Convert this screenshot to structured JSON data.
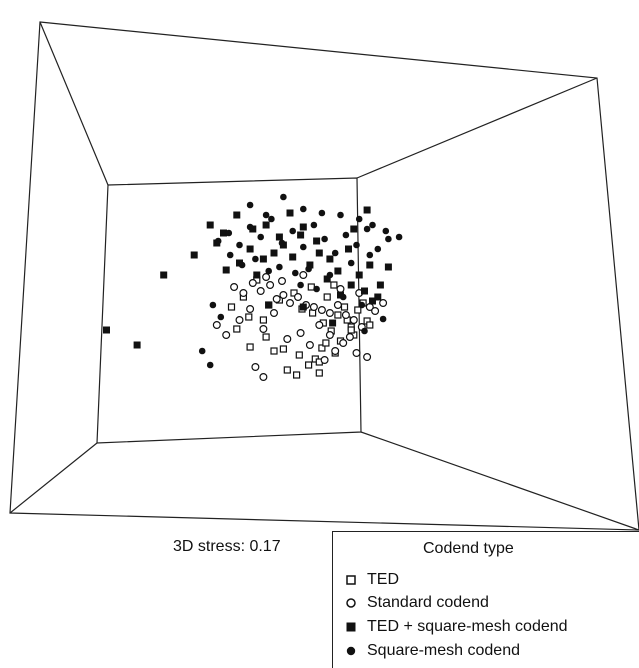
{
  "chart_data": {
    "type": "scatter",
    "title": "",
    "projection": "3D nMDS ordination (perspective box)",
    "annotation": "3D stress: 0.17",
    "legend": {
      "title": "Codend type",
      "placement": "bottom-right",
      "entries": [
        {
          "label": "TED",
          "marker": "open-square"
        },
        {
          "label": "Standard codend",
          "marker": "open-circle"
        },
        {
          "label": "TED + square-mesh codend",
          "marker": "filled-square"
        },
        {
          "label": "Square-mesh codend",
          "marker": "filled-circle"
        }
      ]
    },
    "series": [
      {
        "name": "TED",
        "marker": "open-square",
        "x": [
          -0.35,
          -0.44,
          -0.31,
          -0.16,
          -0.05,
          0.07,
          0.14,
          0.19,
          0.22,
          0.24,
          0.27,
          0.34,
          0.38,
          0.46,
          0.51,
          0.58,
          -0.4,
          -0.3,
          -0.18,
          -0.08,
          0.03,
          0.09,
          0.17,
          0.25,
          0.31,
          0.36,
          0.43,
          0.48,
          0.55,
          0.6,
          -0.02,
          0.05,
          -0.12,
          0.28,
          0.33,
          0.41,
          0.46,
          0.22,
          0.16,
          -0.25,
          -0.2
        ],
        "y": [
          0.18,
          0.08,
          -0.02,
          0.1,
          -0.34,
          -0.4,
          -0.5,
          -0.44,
          -0.47,
          -0.33,
          -0.28,
          -0.38,
          -0.26,
          -0.12,
          0.05,
          -0.06,
          -0.14,
          -0.32,
          -0.22,
          0.15,
          0.22,
          0.06,
          0.02,
          -0.08,
          -0.16,
          0.0,
          -0.05,
          -0.2,
          0.12,
          -0.1,
          -0.55,
          -0.6,
          -0.36,
          0.18,
          0.3,
          0.08,
          -0.15,
          -0.58,
          0.28,
          0.35,
          -0.05
        ]
      },
      {
        "name": "Standard codend",
        "marker": "open-circle",
        "x": [
          -0.42,
          -0.35,
          -0.28,
          -0.22,
          -0.15,
          -0.1,
          -0.05,
          0.0,
          0.06,
          0.12,
          0.18,
          0.24,
          0.3,
          0.36,
          0.42,
          0.48,
          0.54,
          0.6,
          -0.55,
          -0.48,
          -0.38,
          -0.3,
          -0.2,
          -0.12,
          -0.02,
          0.08,
          0.15,
          0.22,
          0.3,
          0.4,
          0.5,
          0.58,
          0.64,
          0.7,
          -0.26,
          0.26,
          0.34,
          -0.18,
          -0.06,
          0.1,
          0.45,
          0.52,
          0.38,
          -0.2
        ],
        "y": [
          0.28,
          0.22,
          0.32,
          0.24,
          0.3,
          0.16,
          0.2,
          0.12,
          0.18,
          0.1,
          0.08,
          0.05,
          0.02,
          0.1,
          0.0,
          -0.05,
          -0.12,
          0.08,
          -0.1,
          -0.2,
          -0.05,
          0.06,
          -0.14,
          0.02,
          -0.24,
          -0.18,
          -0.3,
          -0.1,
          -0.2,
          -0.28,
          -0.38,
          -0.42,
          0.04,
          0.12,
          -0.52,
          -0.45,
          -0.36,
          0.38,
          0.34,
          0.4,
          -0.22,
          0.22,
          0.26,
          -0.62
        ]
      },
      {
        "name": "TED + square-mesh codend",
        "marker": "filled-square",
        "x": [
          -1.38,
          -1.15,
          -0.95,
          -0.72,
          -0.55,
          -0.48,
          -0.38,
          -0.3,
          -0.2,
          -0.12,
          -0.05,
          0.02,
          0.08,
          0.15,
          0.22,
          0.3,
          0.36,
          0.44,
          0.52,
          0.6,
          0.68,
          0.74,
          -0.6,
          -0.5,
          -0.4,
          -0.28,
          -0.18,
          -0.08,
          0.0,
          0.1,
          0.2,
          0.28,
          0.38,
          0.46,
          0.56,
          0.62,
          -0.25,
          0.32,
          0.1,
          0.48,
          0.58,
          0.66,
          -0.16
        ],
        "y": [
          -0.15,
          -0.3,
          0.4,
          0.6,
          0.72,
          0.45,
          0.52,
          0.66,
          0.56,
          0.62,
          0.7,
          0.58,
          0.8,
          0.5,
          0.62,
          0.56,
          0.44,
          0.66,
          0.4,
          0.5,
          0.3,
          0.48,
          0.9,
          0.82,
          1.0,
          0.86,
          0.9,
          0.78,
          1.02,
          0.88,
          0.74,
          0.36,
          0.2,
          0.3,
          0.24,
          0.14,
          0.4,
          -0.08,
          0.08,
          0.86,
          1.05,
          0.18,
          0.1
        ]
      },
      {
        "name": "Square-mesh codend",
        "marker": "filled-circle",
        "x": [
          -0.66,
          -0.6,
          -0.54,
          -0.46,
          -0.38,
          -0.3,
          -0.22,
          -0.14,
          -0.06,
          0.02,
          0.1,
          0.18,
          0.26,
          0.34,
          0.42,
          0.5,
          0.58,
          0.66,
          0.74,
          0.82,
          -0.3,
          -0.18,
          -0.05,
          0.1,
          0.24,
          0.38,
          0.52,
          0.62,
          0.72,
          -0.45,
          -0.36,
          -0.26,
          -0.16,
          -0.08,
          0.04,
          0.14,
          0.3,
          0.46,
          0.6,
          0.08,
          0.2,
          0.4,
          0.54,
          -0.58,
          -0.52,
          0.7,
          0.56
        ],
        "y": [
          -0.36,
          -0.5,
          0.74,
          0.82,
          0.7,
          0.88,
          0.78,
          0.96,
          0.72,
          0.84,
          0.68,
          0.9,
          0.76,
          0.62,
          0.8,
          0.7,
          0.86,
          0.66,
          0.76,
          0.78,
          1.1,
          1.0,
          1.18,
          1.06,
          1.02,
          1.0,
          0.96,
          0.9,
          0.84,
          0.6,
          0.5,
          0.56,
          0.44,
          0.48,
          0.42,
          0.46,
          0.4,
          0.52,
          0.6,
          0.3,
          0.26,
          0.18,
          0.1,
          0.1,
          -0.02,
          -0.04,
          -0.16
        ]
      }
    ]
  },
  "labels": {
    "stress": "3D stress: 0.17",
    "legend_title": "Codend type",
    "legend_items": [
      "TED",
      "Standard codend",
      "TED + square-mesh codend",
      "Square-mesh codend"
    ]
  }
}
